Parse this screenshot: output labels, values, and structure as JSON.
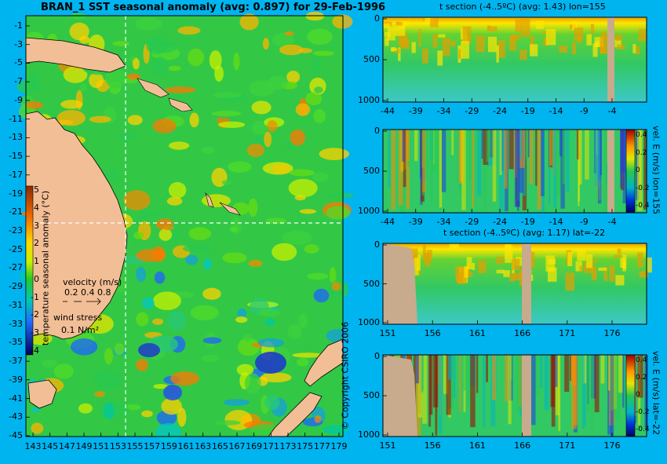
{
  "colors": {
    "background": "#00B4F0",
    "land": "#F2BE96",
    "panel_land": "#C8AA8C"
  },
  "main_map": {
    "title": "BRAN_1 SST seasonal anomaly (avg: 0.897) for 29-Feb-1996",
    "y_ticks": [
      "-1",
      "-3",
      "-5",
      "-7",
      "-9",
      "-11",
      "-13",
      "-15",
      "-17",
      "-19",
      "-21",
      "-23",
      "-25",
      "-27",
      "-29",
      "-31",
      "-33",
      "-35",
      "-37",
      "-39",
      "-41",
      "-43",
      "-45"
    ],
    "x_ticks": [
      "143",
      "145",
      "147",
      "149",
      "151",
      "153",
      "155",
      "157",
      "159",
      "161",
      "163",
      "165",
      "167",
      "169",
      "171",
      "173",
      "175",
      "177",
      "179"
    ],
    "colorbar": {
      "label": "temperature seasonal anomaly (°C)",
      "ticks": [
        "5",
        "4",
        "3",
        "2",
        "1",
        "0",
        "-1",
        "-2",
        "-3",
        "-4"
      ]
    },
    "velocity_label": "velocity (m/s)",
    "velocity_values": "0.2 0.4 0.8",
    "wind_label": "wind stress",
    "wind_value": "0.1 N/m²"
  },
  "panels": [
    {
      "id": "p1",
      "title": "t section (-4..5ºC) (avg: 1.43) lon=155",
      "x_ticks": [
        "-44",
        "-39",
        "-34",
        "-29",
        "-24",
        "-19",
        "-14",
        "-9",
        "-4"
      ],
      "y_ticks": [
        "0",
        "500",
        "1000"
      ],
      "side_label": ""
    },
    {
      "id": "p2",
      "title": "",
      "x_ticks": [
        "-44",
        "-39",
        "-34",
        "-29",
        "-24",
        "-19",
        "-14",
        "-9",
        "-4"
      ],
      "y_ticks": [
        "0",
        "500",
        "1000"
      ],
      "side_label": "vel. E (m/s) lon=155",
      "cbar_ticks": [
        "0.4",
        "0.2",
        "0",
        "-0.2",
        "-0.4"
      ]
    },
    {
      "id": "p3",
      "title": "t section (-4..5ºC) (avg: 1.17) lat=-22",
      "x_ticks": [
        "151",
        "156",
        "161",
        "166",
        "171",
        "176"
      ],
      "y_ticks": [
        "0",
        "500",
        "1000"
      ],
      "side_label": ""
    },
    {
      "id": "p4",
      "title": "",
      "x_ticks": [
        "151",
        "156",
        "161",
        "166",
        "171",
        "176"
      ],
      "y_ticks": [
        "0",
        "500",
        "1000"
      ],
      "side_label": "vel. E (m/s) lat=-22",
      "cbar_ticks": [
        "0.4",
        "0.2",
        "0",
        "-0.2",
        "-0.4"
      ]
    }
  ],
  "copyright": "© Copyright CSIRO 2006",
  "chart_data": [
    {
      "type": "heatmap",
      "title": "BRAN_1 SST seasonal anomaly (avg: 0.897) for 29-Feb-1996",
      "xlabel": "",
      "ylabel": "",
      "xlim": [
        142.5,
        180
      ],
      "ylim": [
        -45,
        0
      ],
      "colorbar_range": [
        -4,
        5
      ]
    },
    {
      "type": "heatmap",
      "title": "t section (-4..5ºC) (avg: 1.43) lon=155",
      "xlim": [
        -45,
        0
      ],
      "ylim": [
        1050,
        0
      ]
    },
    {
      "type": "heatmap",
      "title": "",
      "xlim": [
        -45,
        0
      ],
      "ylim": [
        1050,
        0
      ],
      "colorbar_range": [
        -0.4,
        0.4
      ]
    },
    {
      "type": "heatmap",
      "title": "t section (-4..5ºC) (avg: 1.17) lat=-22",
      "xlim": [
        150,
        180
      ],
      "ylim": [
        1050,
        0
      ]
    },
    {
      "type": "heatmap",
      "title": "",
      "xlim": [
        150,
        180
      ],
      "ylim": [
        1050,
        0
      ],
      "colorbar_range": [
        -0.4,
        0.4
      ]
    }
  ]
}
